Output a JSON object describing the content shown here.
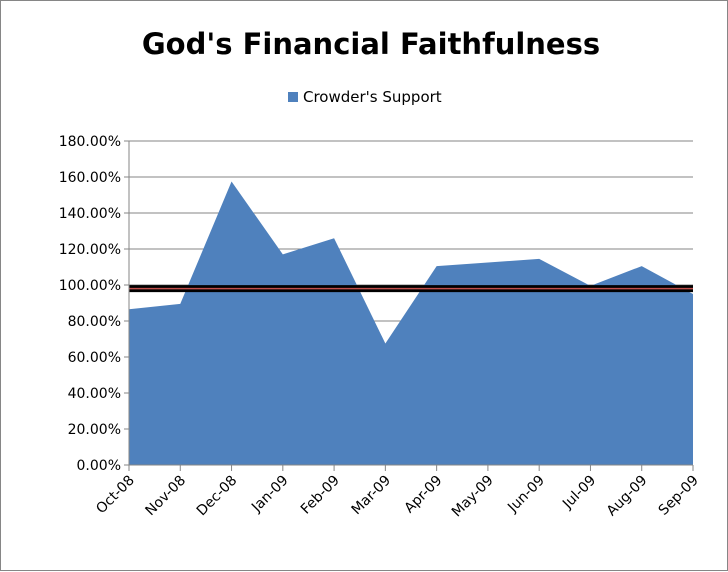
{
  "chart_data": {
    "type": "area",
    "title": "God's Financial Faithfulness",
    "legend": {
      "position": "top",
      "entries": [
        "Crowder's Support"
      ]
    },
    "categories": [
      "Oct-08",
      "Nov-08",
      "Dec-08",
      "Jan-09",
      "Feb-09",
      "Mar-09",
      "Apr-09",
      "May-09",
      "Jun-09",
      "Jul-09",
      "Aug-09",
      "Sep-09"
    ],
    "series": [
      {
        "name": "Crowder's Support",
        "color": "#4f81bd",
        "values": [
          86.5,
          89.5,
          157.5,
          117,
          126,
          67.5,
          110.5,
          112.5,
          114.5,
          99.5,
          110.5,
          95
        ]
      }
    ],
    "reference_line": {
      "value": 98,
      "color": "#000000",
      "inner_color": "#c0504d"
    },
    "y_ticks": [
      "0.00%",
      "20.00%",
      "40.00%",
      "60.00%",
      "80.00%",
      "100.00%",
      "120.00%",
      "140.00%",
      "160.00%",
      "180.00%"
    ],
    "ylim": [
      0,
      180
    ],
    "grid": true
  }
}
